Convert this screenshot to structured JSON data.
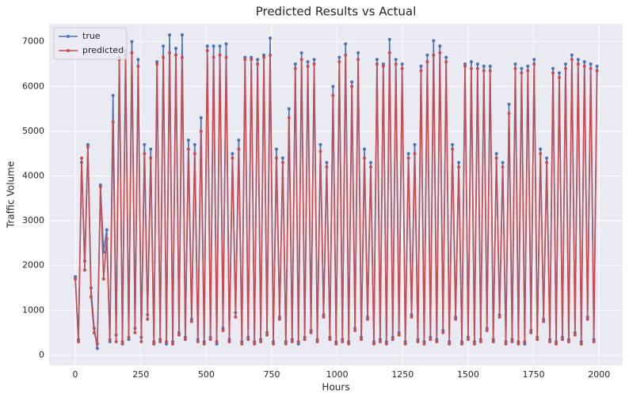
{
  "chart_data": {
    "type": "line",
    "title": "Predicted Results vs Actual",
    "x_label": "Hours",
    "y_label": "Traffic Volume",
    "x": [
      0,
      12,
      24,
      36,
      48,
      60,
      72,
      84,
      96,
      108,
      120,
      132,
      144,
      156,
      168,
      180,
      192,
      204,
      216,
      228,
      240,
      252,
      264,
      276,
      288,
      300,
      312,
      324,
      336,
      348,
      360,
      372,
      384,
      396,
      408,
      420,
      432,
      444,
      456,
      468,
      480,
      492,
      504,
      516,
      528,
      540,
      552,
      564,
      576,
      588,
      600,
      612,
      624,
      636,
      648,
      660,
      672,
      684,
      696,
      708,
      720,
      732,
      744,
      756,
      768,
      780,
      792,
      804,
      816,
      828,
      840,
      852,
      864,
      876,
      888,
      900,
      912,
      924,
      936,
      948,
      960,
      972,
      984,
      996,
      1008,
      1020,
      1032,
      1044,
      1056,
      1068,
      1080,
      1092,
      1104,
      1116,
      1128,
      1140,
      1152,
      1164,
      1176,
      1188,
      1200,
      1212,
      1224,
      1236,
      1248,
      1260,
      1272,
      1284,
      1296,
      1308,
      1320,
      1332,
      1344,
      1356,
      1368,
      1380,
      1392,
      1404,
      1416,
      1428,
      1440,
      1452,
      1464,
      1476,
      1488,
      1500,
      1512,
      1524,
      1536,
      1548,
      1560,
      1572,
      1584,
      1596,
      1608,
      1620,
      1632,
      1644,
      1656,
      1668,
      1680,
      1692,
      1704,
      1716,
      1728,
      1740,
      1752,
      1764,
      1776,
      1788,
      1800,
      1812,
      1824,
      1836,
      1848,
      1860,
      1872,
      1884,
      1896,
      1908,
      1920,
      1932,
      1944,
      1956,
      1968,
      1980,
      1992
    ],
    "series": [
      {
        "name": "true",
        "color": "#4c72b0",
        "values": [
          1750,
          350,
          4300,
          2100,
          4700,
          1500,
          600,
          150,
          3800,
          2300,
          2800,
          300,
          5800,
          450,
          6650,
          300,
          6800,
          350,
          7000,
          600,
          6600,
          400,
          4700,
          900,
          4600,
          300,
          6550,
          350,
          6900,
          250,
          7150,
          300,
          6850,
          500,
          7150,
          400,
          4800,
          800,
          4700,
          350,
          5300,
          300,
          6900,
          400,
          6900,
          250,
          6900,
          600,
          6950,
          350,
          4500,
          950,
          4800,
          300,
          6650,
          400,
          6650,
          300,
          6600,
          350,
          6700,
          500,
          7080,
          300,
          4600,
          850,
          4400,
          300,
          5500,
          350,
          6500,
          250,
          6750,
          400,
          6550,
          550,
          6600,
          350,
          4700,
          900,
          4300,
          400,
          6000,
          300,
          6650,
          350,
          6950,
          300,
          6100,
          600,
          6750,
          400,
          4600,
          850,
          4300,
          300,
          6600,
          350,
          6500,
          300,
          7050,
          400,
          6600,
          500,
          6500,
          300,
          4500,
          900,
          4700,
          350,
          6450,
          300,
          6700,
          400,
          7020,
          350,
          6900,
          550,
          6650,
          300,
          4700,
          850,
          4300,
          300,
          6500,
          400,
          6550,
          300,
          6500,
          350,
          6450,
          600,
          6450,
          350,
          4500,
          900,
          4300,
          300,
          5600,
          350,
          6500,
          300,
          6400,
          250,
          6450,
          550,
          6600,
          400,
          4600,
          800,
          4400,
          350,
          6400,
          300,
          6300,
          400,
          6500,
          350,
          6700,
          500,
          6600,
          300,
          6550,
          850,
          6500,
          350,
          6450
        ]
      },
      {
        "name": "predicted",
        "color": "#c44e52",
        "values": [
          1700,
          300,
          4400,
          1900,
          4650,
          1300,
          500,
          250,
          3750,
          1700,
          2600,
          350,
          5200,
          300,
          6600,
          250,
          6700,
          400,
          6750,
          500,
          6450,
          300,
          4500,
          800,
          4400,
          250,
          6500,
          300,
          6650,
          300,
          6750,
          250,
          6700,
          450,
          6650,
          350,
          4600,
          750,
          4500,
          300,
          5000,
          250,
          6800,
          350,
          6650,
          300,
          6700,
          550,
          6650,
          300,
          4400,
          850,
          4600,
          250,
          6600,
          350,
          6600,
          250,
          6500,
          300,
          6650,
          450,
          6700,
          250,
          4400,
          800,
          4300,
          250,
          5300,
          300,
          6400,
          300,
          6600,
          350,
          6450,
          500,
          6500,
          300,
          4550,
          850,
          4200,
          350,
          5800,
          250,
          6550,
          300,
          6700,
          250,
          6000,
          550,
          6600,
          350,
          4400,
          800,
          4200,
          250,
          6500,
          300,
          6450,
          250,
          6750,
          350,
          6500,
          450,
          6400,
          250,
          4400,
          850,
          4500,
          300,
          6350,
          250,
          6550,
          350,
          6700,
          300,
          6750,
          500,
          6550,
          250,
          4600,
          800,
          4200,
          250,
          6450,
          350,
          6400,
          250,
          6400,
          300,
          6350,
          550,
          6350,
          300,
          4400,
          850,
          4200,
          250,
          5400,
          300,
          6400,
          250,
          6300,
          300,
          6350,
          500,
          6500,
          350,
          4500,
          750,
          4300,
          300,
          6300,
          250,
          6200,
          350,
          6400,
          300,
          6600,
          450,
          6500,
          250,
          6450,
          800,
          6400,
          300,
          6350
        ]
      }
    ],
    "xlim": [
      -100,
      2090
    ],
    "ylim": [
      -230,
      7400
    ],
    "xticks": [
      0,
      250,
      500,
      750,
      1000,
      1250,
      1500,
      1750,
      2000
    ],
    "yticks": [
      0,
      1000,
      2000,
      3000,
      4000,
      5000,
      6000,
      7000
    ],
    "grid": true,
    "legend": "upper left"
  }
}
